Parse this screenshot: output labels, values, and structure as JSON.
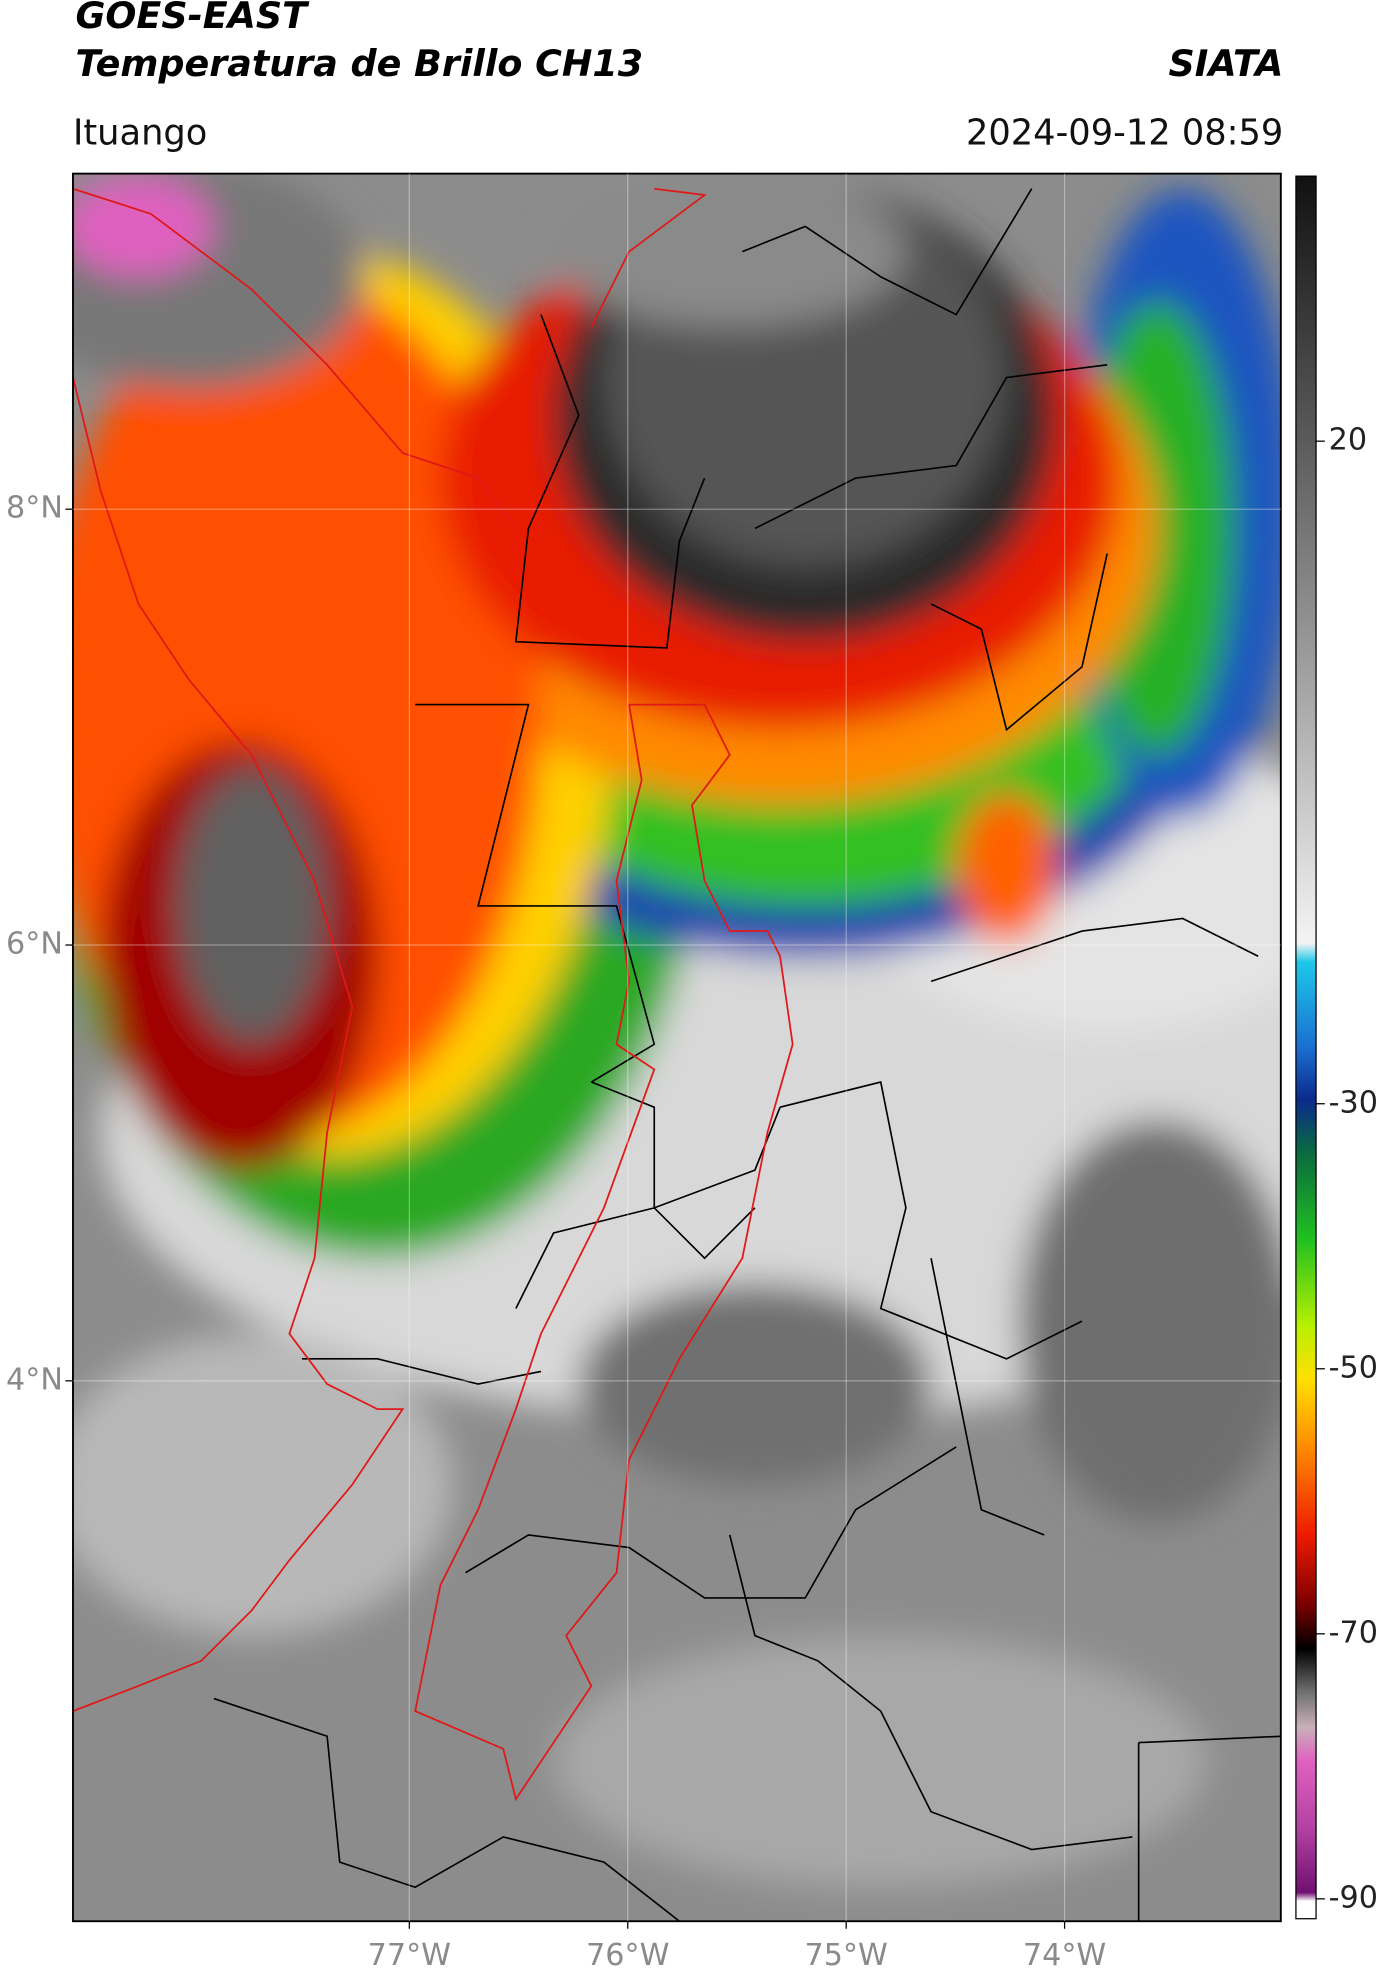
{
  "header": {
    "title": "GOES-EAST",
    "subtitle": "Temperatura de Brillo CH13",
    "source": "SIATA",
    "location": "Ituango",
    "datetime": "2024-09-12 08:59"
  },
  "map": {
    "lon_range": [
      -78.54,
      -73.01
    ],
    "lat_range": [
      1.52,
      9.54
    ],
    "lat_ticks": [
      {
        "value": 8,
        "label": "8°N"
      },
      {
        "value": 6,
        "label": "6°N"
      },
      {
        "value": 4,
        "label": "4°N"
      }
    ],
    "lon_ticks": [
      {
        "value": -77,
        "label": "77°W"
      },
      {
        "value": -76,
        "label": "76°W"
      },
      {
        "value": -75,
        "label": "75°W"
      },
      {
        "value": -74,
        "label": "74°W"
      }
    ]
  },
  "colorbar": {
    "range": [
      -91.5,
      40
    ],
    "ticks": [
      20,
      -30,
      -50,
      -70,
      -90
    ]
  }
}
